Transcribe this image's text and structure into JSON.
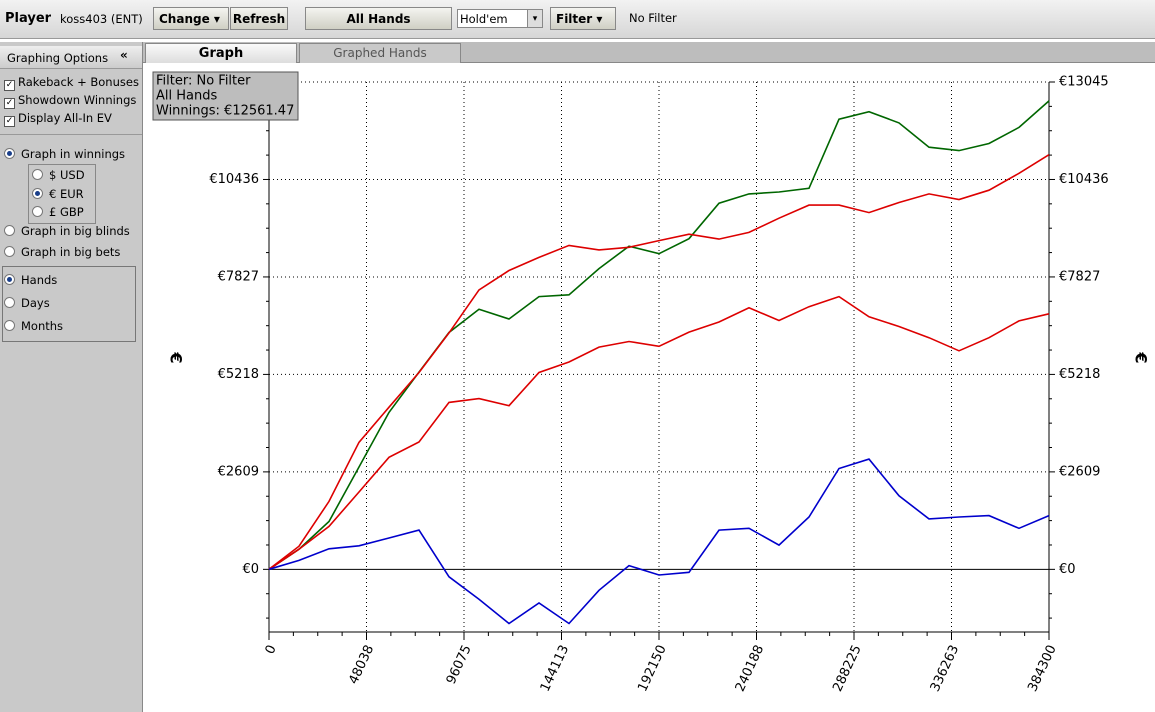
{
  "toolbar": {
    "player_label": "Player",
    "player_name": "koss403 (ENT)",
    "change": "Change",
    "refresh": "Refresh",
    "all_hands": "All Hands",
    "game": "Hold'em",
    "filter": "Filter",
    "filter_status": "No Filter"
  },
  "sidebar": {
    "title": "Graphing Options",
    "checkboxes": [
      "Rakeback + Bonuses",
      "Showdown Winnings",
      "Display All-In EV"
    ],
    "graph_in": [
      "Graph in winnings",
      "Graph in big blinds",
      "Graph in big bets"
    ],
    "currencies": [
      "$ USD",
      "€ EUR",
      "£ GBP"
    ],
    "periods": [
      "Hands",
      "Days",
      "Months"
    ]
  },
  "tabs": [
    "Graph",
    "Graphed Hands"
  ],
  "chart_data": {
    "type": "line",
    "annotation": [
      "Filter: No Filter",
      "All Hands",
      "Winnings: €12561.47"
    ],
    "y_label": "€",
    "x": [
      0,
      14781,
      29562,
      44343,
      59124,
      73905,
      88686,
      103467,
      118248,
      133029,
      147810,
      162591,
      177372,
      192153,
      206934,
      221715,
      236496,
      251277,
      266058,
      280839,
      295620,
      310401,
      325182,
      339963,
      354744,
      369525,
      384300
    ],
    "series": [
      {
        "color": "#006600",
        "values": [
          0,
          540,
          1280,
          2740,
          4200,
          5280,
          6340,
          6960,
          6700,
          7300,
          7350,
          8050,
          8650,
          8450,
          8850,
          9800,
          10050,
          10100,
          10200,
          12050,
          12250,
          11950,
          11300,
          11210,
          11400,
          11830,
          12540
        ]
      },
      {
        "color": "#dd0000",
        "values": [
          0,
          620,
          1820,
          3400,
          4340,
          5270,
          6330,
          7480,
          8000,
          8350,
          8670,
          8550,
          8620,
          8800,
          8970,
          8840,
          9020,
          9400,
          9750,
          9750,
          9550,
          9820,
          10050,
          9900,
          10150,
          10600,
          11100
        ]
      },
      {
        "color": "#dd0000",
        "values": [
          0,
          540,
          1150,
          2070,
          3000,
          3410,
          4470,
          4570,
          4380,
          5270,
          5550,
          5950,
          6100,
          5970,
          6350,
          6620,
          7000,
          6660,
          7030,
          7300,
          6760,
          6500,
          6200,
          5850,
          6200,
          6650,
          6840
        ]
      },
      {
        "color": "#0000cc",
        "values": [
          0,
          240,
          550,
          630,
          840,
          1050,
          -200,
          -800,
          -1450,
          -900,
          -1450,
          -560,
          100,
          -150,
          -80,
          1050,
          1100,
          650,
          1400,
          2700,
          2950,
          1970,
          1350,
          1400,
          1440,
          1100,
          1440
        ]
      }
    ],
    "xlim": [
      0,
      384300
    ],
    "xticks": [
      0,
      48038,
      96075,
      144113,
      192150,
      240188,
      288225,
      336263,
      384300
    ],
    "ylim": [
      -1677,
      13045
    ],
    "yticks": [
      {
        "value": 0,
        "label": "€0"
      },
      {
        "value": 2609,
        "label": "€2609"
      },
      {
        "value": 5218,
        "label": "€5218"
      },
      {
        "value": 7827,
        "label": "€7827"
      },
      {
        "value": 10436,
        "label": "€10436"
      },
      {
        "value": 13045,
        "label": "€13045"
      }
    ],
    "grid": true
  }
}
